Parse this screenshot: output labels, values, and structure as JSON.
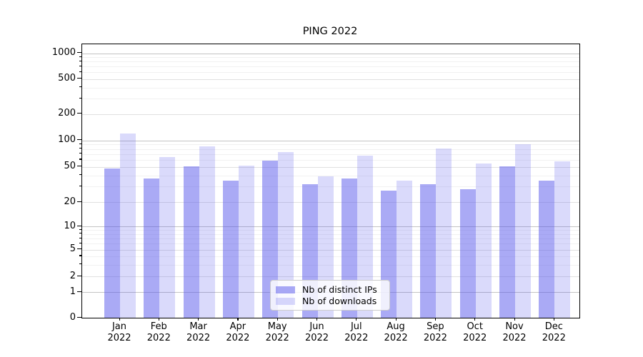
{
  "title": "PING 2022",
  "legend": {
    "items": [
      {
        "label": "Nb of distinct IPs",
        "color": "#5656eb",
        "opacity": 0.5,
        "rendered_color": "#aaaaf5"
      },
      {
        "label": "Nb of downloads",
        "color": "#5656eb",
        "opacity": 0.22,
        "rendered_color": "#d9d9f6"
      }
    ]
  },
  "y_axis": {
    "tick_labels": [
      "1000",
      "500",
      "200",
      "100",
      "50",
      "20",
      "10",
      "5",
      "2",
      "1",
      "0"
    ]
  },
  "x_axis": {
    "tick_labels": [
      "Jan 2022",
      "Feb 2022",
      "Mar 2022",
      "Apr 2022",
      "May 2022",
      "Jun 2022",
      "Jul 2022",
      "Aug 2022",
      "Sep 2022",
      "Oct 2022",
      "Nov 2022",
      "Dec 2022"
    ]
  },
  "chart_data": {
    "type": "bar",
    "title": "PING 2022",
    "categories": [
      "Jan 2022",
      "Feb 2022",
      "Mar 2022",
      "Apr 2022",
      "May 2022",
      "Jun 2022",
      "Jul 2022",
      "Aug 2022",
      "Sep 2022",
      "Oct 2022",
      "Nov 2022",
      "Dec 2022"
    ],
    "series": [
      {
        "name": "Nb of distinct IPs",
        "color": "#5656eb",
        "opacity": 0.5,
        "values": [
          48,
          37,
          51,
          35,
          59,
          32,
          37,
          27,
          32,
          28,
          51,
          35
        ]
      },
      {
        "name": "Nb of downloads",
        "color": "#5656eb",
        "opacity": 0.22,
        "values": [
          120,
          65,
          86,
          52,
          73,
          39,
          67,
          35,
          81,
          55,
          90,
          58
        ]
      }
    ],
    "yscale": "symlog",
    "yticks": [
      0,
      1,
      2,
      5,
      10,
      20,
      50,
      100,
      200,
      500,
      1000
    ],
    "ylim": [
      0,
      1250
    ],
    "grid": true,
    "legend_position": "lower center"
  }
}
